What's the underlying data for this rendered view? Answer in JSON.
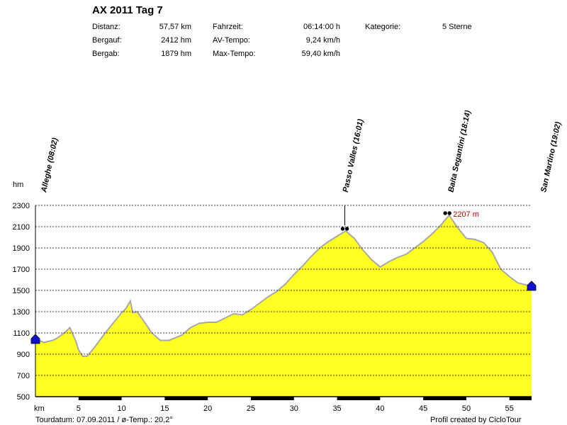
{
  "header": {
    "title": "AX 2011 Tag 7",
    "stats": [
      {
        "label": "Distanz:",
        "value": "57,57 km"
      },
      {
        "label": "Bergauf:",
        "value": "2412 hm"
      },
      {
        "label": "Bergab:",
        "value": "1879 hm"
      },
      {
        "label": "Fahrzeit:",
        "value": "06:14:00 h"
      },
      {
        "label": "AV-Tempo:",
        "value": "9,24 km/h"
      },
      {
        "label": "Max-Tempo:",
        "value": "59,40 km/h"
      },
      {
        "label": "Kategorie:",
        "value": "5 Sterne"
      }
    ]
  },
  "footer": {
    "left": "Tourdatum: 07.09.2011  /  ø-Temp.: 20,2°",
    "right": "Profil created by CicloTour"
  },
  "colors": {
    "fill": "#ffff22",
    "outline": "#a8a8a8",
    "marker": "#1010d0",
    "max_label": "#cc0000"
  },
  "chart_data": {
    "type": "area",
    "ylabel": "hm",
    "xlabel": "km",
    "xlim": [
      0,
      57.57
    ],
    "ylim": [
      500,
      2300
    ],
    "yticks": [
      500,
      700,
      900,
      1100,
      1300,
      1500,
      1700,
      1900,
      2100,
      2300
    ],
    "xticks": [
      5,
      10,
      15,
      20,
      25,
      30,
      35,
      40,
      45,
      50,
      55
    ],
    "grid": "horizontal dashed",
    "x": [
      0,
      1,
      2,
      2.5,
      3.5,
      4,
      4.7,
      5,
      5.5,
      6,
      7,
      8,
      9,
      10,
      10.5,
      11,
      11.3,
      11.8,
      12.5,
      13.5,
      14.5,
      15.5,
      17,
      18,
      19,
      20,
      21,
      22,
      23,
      24,
      25,
      26,
      27,
      28,
      29,
      30,
      31,
      32,
      33,
      34,
      35,
      36,
      37,
      38,
      39,
      40,
      41,
      42,
      43,
      44,
      45,
      46,
      47,
      48,
      49,
      50,
      51,
      52,
      53,
      54,
      55,
      56,
      57.57
    ],
    "y": [
      1040,
      1010,
      1030,
      1050,
      1110,
      1150,
      1020,
      940,
      880,
      880,
      980,
      1090,
      1190,
      1290,
      1330,
      1400,
      1290,
      1300,
      1220,
      1100,
      1030,
      1030,
      1080,
      1150,
      1190,
      1200,
      1200,
      1240,
      1280,
      1270,
      1320,
      1380,
      1440,
      1490,
      1560,
      1650,
      1730,
      1820,
      1900,
      1960,
      2010,
      2060,
      1990,
      1880,
      1790,
      1720,
      1770,
      1810,
      1840,
      1900,
      1960,
      2030,
      2110,
      2207,
      2090,
      1990,
      1980,
      1950,
      1860,
      1700,
      1630,
      1570,
      1540
    ],
    "waypoints": [
      {
        "name": "Alleghe (08:02)",
        "km": 0,
        "hm": 1040,
        "marker": "flag"
      },
      {
        "name": "Passo Valles (16:01)",
        "km": 35.9,
        "hm": 2060,
        "marker": "binoculars"
      },
      {
        "name": "Baita Segantini (18:14)",
        "km": 47.8,
        "hm": 2207,
        "marker": "binoculars"
      },
      {
        "name": "San Martino (19:02)",
        "km": 57.57,
        "hm": 1540,
        "marker": "flag"
      }
    ],
    "annotations": [
      {
        "text": "2207 m",
        "km": 47.8,
        "hm": 2207
      }
    ]
  }
}
